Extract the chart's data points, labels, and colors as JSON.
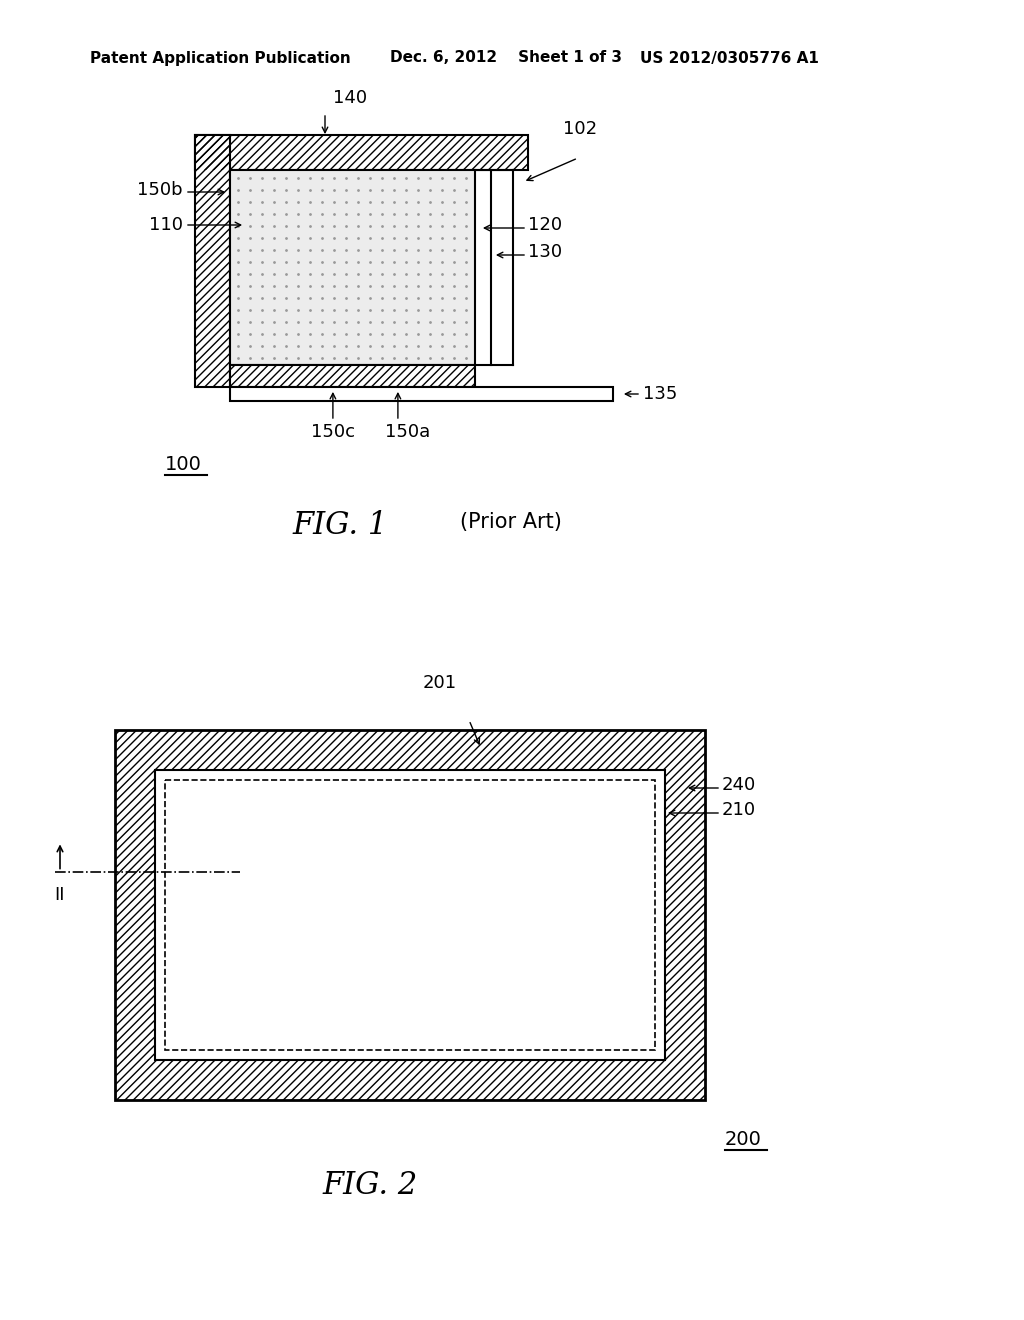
{
  "bg_color": "#ffffff",
  "header": {
    "left": "Patent Application Publication",
    "center": "Dec. 6, 2012    Sheet 1 of 3",
    "right": "US 2012/0305776 A1",
    "fontsize": 11
  },
  "fig1": {
    "title": "FIG. 1",
    "subtitle": "(Prior Art)",
    "label_100": "100",
    "label_102": "102",
    "label_110": "110",
    "label_120": "120",
    "label_130": "130",
    "label_135": "135",
    "label_140": "140",
    "label_150a": "150a",
    "label_150b": "150b",
    "label_150c": "150c"
  },
  "fig2": {
    "title": "FIG. 2",
    "label_200": "200",
    "label_201": "201",
    "label_210": "210",
    "label_240": "240"
  },
  "hatch_color": "#000000",
  "line_color": "#000000",
  "title_fontsize": 22,
  "label_fontsize": 13
}
